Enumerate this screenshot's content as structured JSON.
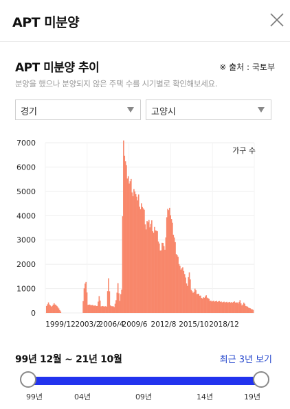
{
  "header": {
    "title": "APT 미분양"
  },
  "section": {
    "title": "APT 미분양 추이",
    "source": "※ 출처 : 국토부",
    "description": "분양을 했으나 분양되지 않은 주택 수를 시기별로 확인해보세요."
  },
  "filters": {
    "region": "경기",
    "city": "고양시"
  },
  "chart_data": {
    "type": "bar",
    "series_label": "가구 수",
    "ylim": [
      0,
      7000
    ],
    "y_ticks": [
      "7000",
      "6000",
      "5000",
      "4000",
      "3000",
      "2000",
      "1000",
      "0"
    ],
    "x_ticks": [
      "1999/12",
      "2003/2",
      "2006/4",
      "2009/6",
      "2012/8",
      "2015/10",
      "2018/12"
    ],
    "color": "#f8876b",
    "grid": true,
    "keypoints": [
      [
        0,
        300
      ],
      [
        2,
        420
      ],
      [
        5,
        250
      ],
      [
        8,
        380
      ],
      [
        11,
        300
      ],
      [
        14,
        120
      ],
      [
        16,
        0
      ],
      [
        38,
        0
      ],
      [
        40,
        1000
      ],
      [
        42,
        1300
      ],
      [
        44,
        350
      ],
      [
        48,
        320
      ],
      [
        54,
        280
      ],
      [
        56,
        700
      ],
      [
        58,
        280
      ],
      [
        64,
        260
      ],
      [
        66,
        1500
      ],
      [
        68,
        300
      ],
      [
        72,
        250
      ],
      [
        74,
        500
      ],
      [
        76,
        1200
      ],
      [
        78,
        500
      ],
      [
        80,
        1000
      ],
      [
        82,
        6950
      ],
      [
        84,
        6200
      ],
      [
        86,
        5600
      ],
      [
        90,
        5400
      ],
      [
        92,
        4800
      ],
      [
        94,
        5100
      ],
      [
        96,
        4600
      ],
      [
        98,
        4800
      ],
      [
        100,
        4300
      ],
      [
        102,
        4500
      ],
      [
        104,
        4100
      ],
      [
        106,
        3400
      ],
      [
        108,
        3800
      ],
      [
        110,
        3700
      ],
      [
        112,
        3700
      ],
      [
        114,
        3300
      ],
      [
        116,
        3500
      ],
      [
        118,
        3200
      ],
      [
        120,
        2800
      ],
      [
        122,
        2600
      ],
      [
        124,
        3000
      ],
      [
        126,
        2500
      ],
      [
        128,
        3900
      ],
      [
        130,
        4300
      ],
      [
        132,
        4200
      ],
      [
        134,
        3600
      ],
      [
        136,
        3100
      ],
      [
        138,
        2500
      ],
      [
        140,
        2200
      ],
      [
        142,
        1900
      ],
      [
        146,
        1800
      ],
      [
        148,
        1400
      ],
      [
        150,
        1100
      ],
      [
        152,
        1700
      ],
      [
        154,
        1000
      ],
      [
        156,
        800
      ],
      [
        158,
        1000
      ],
      [
        160,
        800
      ],
      [
        164,
        700
      ],
      [
        166,
        600
      ],
      [
        170,
        700
      ],
      [
        174,
        500
      ],
      [
        180,
        480
      ],
      [
        186,
        460
      ],
      [
        192,
        440
      ],
      [
        196,
        430
      ],
      [
        200,
        460
      ],
      [
        204,
        400
      ],
      [
        206,
        500
      ],
      [
        208,
        300
      ],
      [
        210,
        430
      ],
      [
        212,
        300
      ],
      [
        214,
        250
      ],
      [
        216,
        200
      ],
      [
        218,
        160
      ],
      [
        220,
        130
      ]
    ]
  },
  "range": {
    "label": "99년 12월 ~ 21년 10월",
    "recent_button": "최근 3년 보기",
    "ticks": [
      "99년",
      "04년",
      "09년",
      "14년",
      "19년"
    ]
  }
}
